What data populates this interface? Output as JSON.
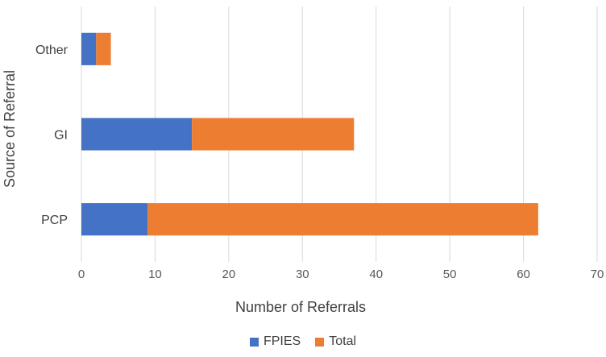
{
  "chart_data": {
    "type": "bar",
    "orientation": "horizontal",
    "stacked": true,
    "categories": [
      "PCP",
      "GI",
      "Other"
    ],
    "series": [
      {
        "name": "FPIES",
        "values": [
          9,
          15,
          2
        ],
        "color": "#4472C4"
      },
      {
        "name": "Total",
        "values": [
          53,
          22,
          2
        ],
        "color": "#ED7D31"
      }
    ],
    "xlabel": "Number of Referrals",
    "ylabel": "Source of Referral",
    "xlim": [
      0,
      70
    ],
    "xticks": [
      "0",
      "10",
      "20",
      "30",
      "40",
      "50",
      "60",
      "70"
    ],
    "grid": true,
    "legend": "bottom"
  }
}
